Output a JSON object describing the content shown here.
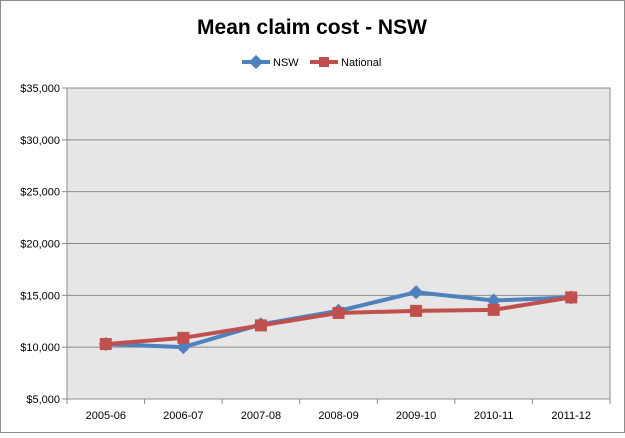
{
  "chart_data": {
    "type": "line",
    "title": "Mean claim cost - NSW",
    "xlabel": "",
    "ylabel": "",
    "categories": [
      "2005-06",
      "2006-07",
      "2007-08",
      "2008-09",
      "2009-10",
      "2010-11",
      "2011-12"
    ],
    "ylim": [
      5000,
      35000
    ],
    "yticks": [
      5000,
      10000,
      15000,
      20000,
      25000,
      30000,
      35000
    ],
    "ytick_labels": [
      "$5,000",
      "$10,000",
      "$15,000",
      "$20,000",
      "$25,000",
      "$30,000",
      "$35,000"
    ],
    "grid": true,
    "legend": "top-center",
    "series": [
      {
        "name": "NSW",
        "color": "#4f81bd",
        "marker": "diamond",
        "values": [
          10300,
          10000,
          12200,
          13500,
          15300,
          14500,
          14800
        ]
      },
      {
        "name": "National",
        "color": "#c0504d",
        "marker": "square",
        "values": [
          10300,
          10900,
          12100,
          13300,
          13500,
          13600,
          14800
        ]
      }
    ],
    "plot_background": "#e6e6e6"
  }
}
